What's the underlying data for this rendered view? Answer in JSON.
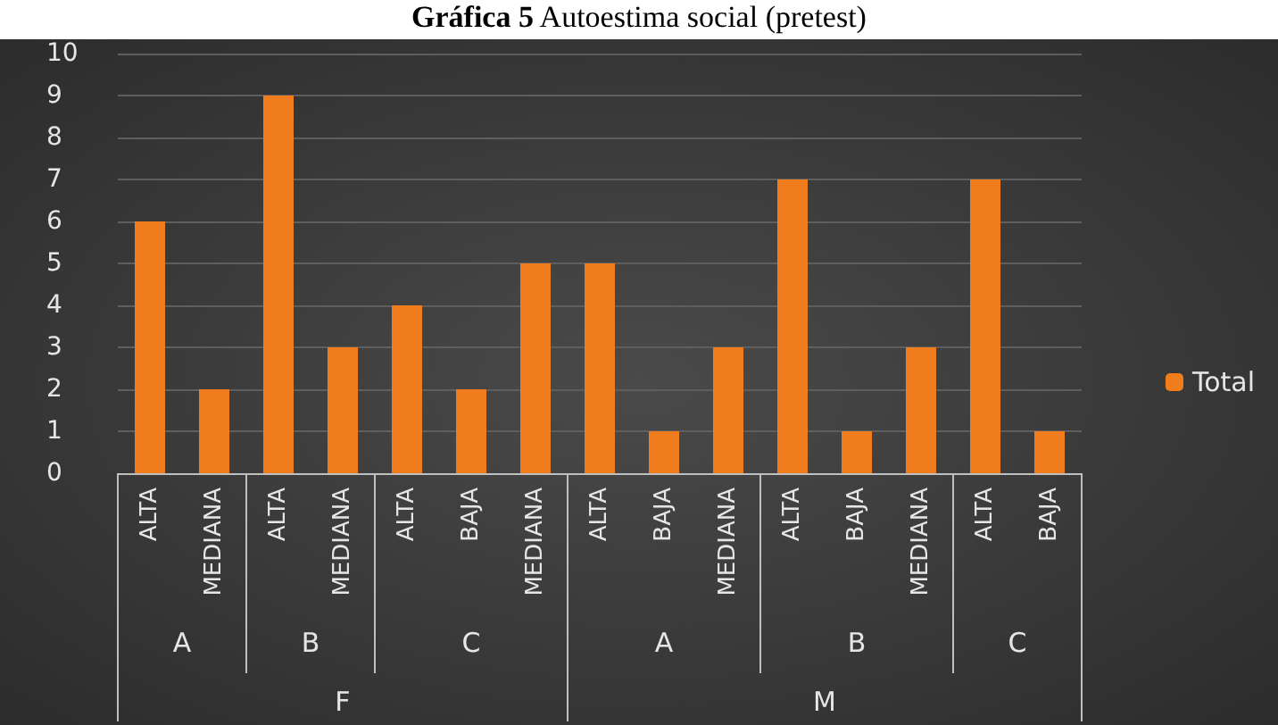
{
  "chart_data": {
    "type": "bar",
    "title": "Gráfica 5",
    "subtitle": "Autoestima social (pretest)",
    "categories": [
      "ALTA",
      "MEDIANA",
      "ALTA",
      "MEDIANA",
      "ALTA",
      "BAJA",
      "MEDIANA",
      "ALTA",
      "BAJA",
      "MEDIANA",
      "ALTA",
      "BAJA",
      "MEDIANA",
      "ALTA",
      "BAJA"
    ],
    "series": [
      {
        "name": "Total",
        "color": "#f07d1b",
        "values": [
          6,
          2,
          9,
          3,
          4,
          2,
          5,
          5,
          1,
          3,
          7,
          1,
          3,
          7,
          1
        ]
      }
    ],
    "annotations": [
      "A",
      "B",
      "C",
      "A",
      "B",
      "C",
      "F",
      "M"
    ],
    "ylim": [
      0,
      10
    ],
    "yticks": [
      0,
      1,
      2,
      3,
      4,
      5,
      6,
      7,
      8,
      9,
      10
    ],
    "grid": "y",
    "legend": "right"
  }
}
